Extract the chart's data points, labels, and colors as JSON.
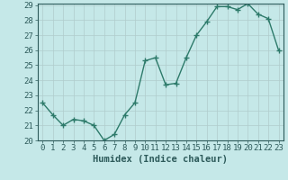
{
  "x": [
    0,
    1,
    2,
    3,
    4,
    5,
    6,
    7,
    8,
    9,
    10,
    11,
    12,
    13,
    14,
    15,
    16,
    17,
    18,
    19,
    20,
    21,
    22,
    23
  ],
  "y": [
    22.5,
    21.7,
    21.0,
    21.4,
    21.3,
    21.0,
    20.0,
    20.4,
    21.7,
    22.5,
    25.3,
    25.5,
    23.7,
    23.8,
    25.5,
    27.0,
    27.9,
    28.9,
    28.9,
    28.7,
    29.1,
    28.4,
    28.1,
    26.0
  ],
  "line_color": "#2d7a6a",
  "marker": "+",
  "marker_size": 4,
  "bg_color": "#c5e8e8",
  "grid_color": "#b0cccc",
  "xlabel": "Humidex (Indice chaleur)",
  "ylim": [
    20,
    29
  ],
  "xlim": [
    -0.5,
    23.5
  ],
  "yticks": [
    20,
    21,
    22,
    23,
    24,
    25,
    26,
    27,
    28,
    29
  ],
  "xticks": [
    0,
    1,
    2,
    3,
    4,
    5,
    6,
    7,
    8,
    9,
    10,
    11,
    12,
    13,
    14,
    15,
    16,
    17,
    18,
    19,
    20,
    21,
    22,
    23
  ],
  "tick_color": "#2d5a5a",
  "label_fontsize": 7.5,
  "tick_fontsize": 6.5,
  "linewidth": 1.0
}
